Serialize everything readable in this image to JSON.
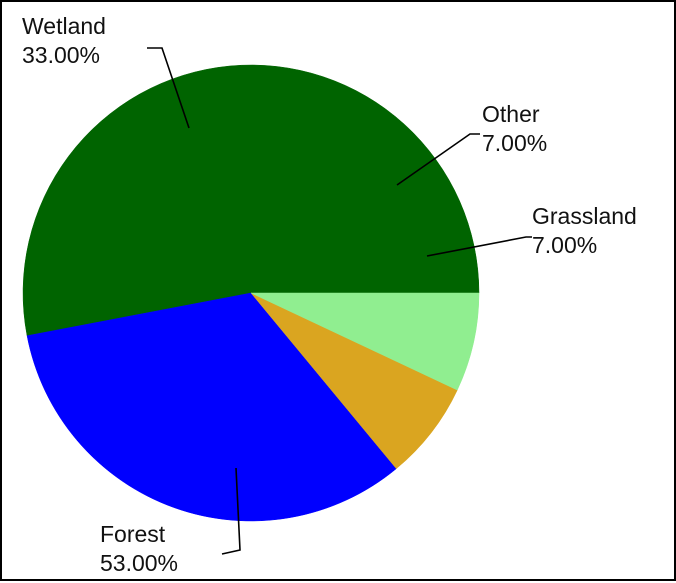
{
  "chart_data": {
    "type": "pie",
    "title": "",
    "slices": [
      {
        "label": "Forest",
        "value": 53.0,
        "pct_label": "53.00%",
        "color": "#006400"
      },
      {
        "label": "Wetland",
        "value": 33.0,
        "pct_label": "33.00%",
        "color": "#0000ff"
      },
      {
        "label": "Other",
        "value": 7.0,
        "pct_label": "7.00%",
        "color": "#daa520"
      },
      {
        "label": "Grassland",
        "value": 7.0,
        "pct_label": "7.00%",
        "color": "#90ee90"
      }
    ],
    "start_angle_deg": 0,
    "direction": "counterclockwise",
    "legend": "none"
  }
}
